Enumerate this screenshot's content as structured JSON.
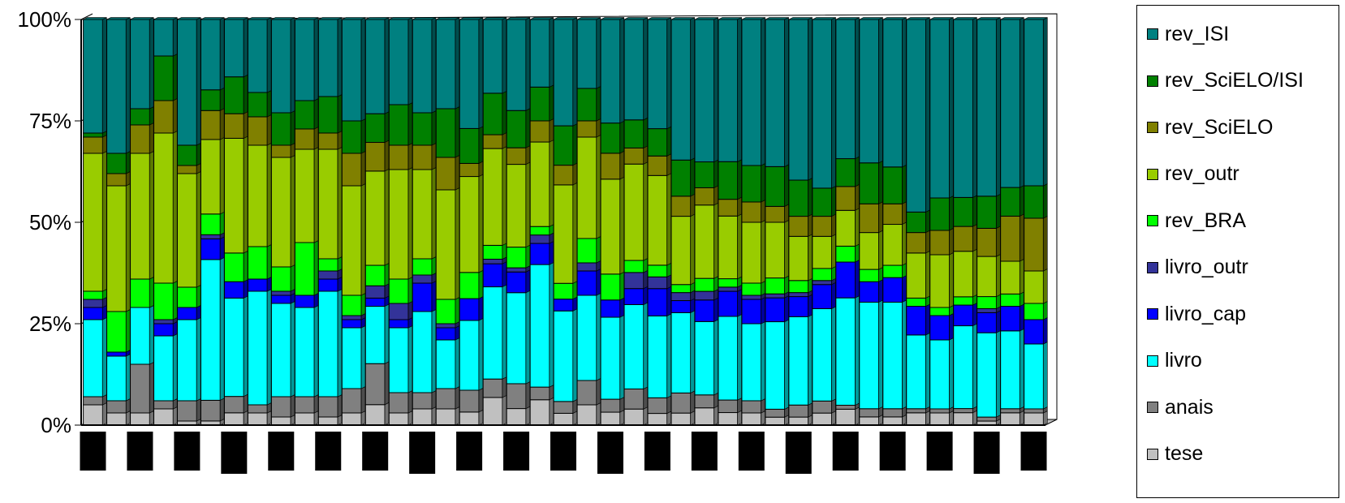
{
  "chart_data": {
    "type": "bar",
    "stacked": "percent",
    "y_ticks": [
      "0%",
      "25%",
      "50%",
      "75%",
      "100%"
    ],
    "ylim": [
      0,
      100
    ],
    "categories_count": 41,
    "series": [
      {
        "name": "tese",
        "color": "#c0c0c0",
        "values": [
          5,
          3,
          3,
          4,
          1,
          1,
          3,
          3,
          2,
          3,
          2,
          3,
          5,
          3,
          4,
          4,
          3,
          6,
          4,
          6,
          3,
          5,
          3,
          4,
          3,
          3,
          4,
          3,
          3,
          2,
          2,
          3,
          4,
          2,
          2,
          3,
          3,
          3,
          1,
          3,
          3
        ]
      },
      {
        "name": "anais",
        "color": "#808080",
        "values": [
          2,
          3,
          12,
          2,
          5,
          5,
          4,
          2,
          5,
          4,
          5,
          6,
          10,
          5,
          4,
          5,
          5,
          4,
          6,
          3,
          3,
          6,
          3,
          5,
          4,
          5,
          3,
          3,
          3,
          2,
          3,
          3,
          1,
          2,
          2,
          1,
          1,
          1,
          1,
          1,
          1
        ]
      },
      {
        "name": "livro",
        "color": "#00ffff",
        "values": [
          19,
          11,
          14,
          16,
          20,
          34,
          24,
          28,
          23,
          22,
          26,
          15,
          14,
          16,
          20,
          12,
          16,
          20,
          22,
          29,
          23,
          21,
          19,
          21,
          21,
          20,
          17,
          20,
          19,
          22,
          22,
          23,
          27,
          26,
          26,
          18,
          17,
          20,
          21,
          19,
          16
        ]
      },
      {
        "name": "livro_cap",
        "color": "#0000ff",
        "values": [
          3,
          1,
          0,
          3,
          3,
          5,
          4,
          3,
          2,
          3,
          3,
          2,
          2,
          2,
          7,
          3,
          5,
          5,
          5,
          5,
          3,
          6,
          4,
          4,
          7,
          3,
          5,
          6,
          6,
          6,
          5,
          6,
          9,
          5,
          6,
          7,
          6,
          5,
          5,
          6,
          6
        ]
      },
      {
        "name": "livro_outr",
        "color": "#333399",
        "values": [
          2,
          0,
          0,
          1,
          0,
          1,
          0,
          0,
          1,
          0,
          2,
          1,
          3,
          4,
          2,
          1,
          0,
          1,
          1,
          2,
          0,
          2,
          0,
          4,
          3,
          2,
          2,
          1,
          1,
          1,
          1,
          1,
          0,
          0,
          0,
          0,
          0,
          0,
          1,
          0,
          0
        ]
      },
      {
        "name": "rev_BRA",
        "color": "#00ff00",
        "values": [
          2,
          10,
          7,
          9,
          5,
          5,
          7,
          8,
          6,
          13,
          3,
          5,
          5,
          6,
          4,
          6,
          6,
          3,
          5,
          2,
          4,
          6,
          6,
          3,
          3,
          2,
          3,
          2,
          3,
          4,
          3,
          3,
          4,
          3,
          3,
          2,
          2,
          2,
          3,
          3,
          4
        ]
      },
      {
        "name": "rev_outr",
        "color": "#99cc00",
        "values": [
          34,
          31,
          31,
          37,
          28,
          18,
          28,
          25,
          27,
          23,
          27,
          27,
          23,
          27,
          22,
          27,
          22,
          21,
          20,
          20,
          25,
          25,
          22,
          24,
          23,
          17,
          17,
          15,
          15,
          14,
          11,
          8,
          9,
          9,
          10,
          11,
          13,
          11,
          10,
          8,
          8
        ]
      },
      {
        "name": "rev_SciELO",
        "color": "#808000",
        "values": [
          4,
          3,
          7,
          8,
          2,
          7,
          6,
          7,
          3,
          5,
          4,
          8,
          7,
          6,
          6,
          8,
          3,
          3,
          4,
          5,
          5,
          4,
          6,
          4,
          5,
          5,
          4,
          4,
          5,
          4,
          5,
          5,
          6,
          7,
          5,
          5,
          6,
          6,
          7,
          11,
          13
        ]
      },
      {
        "name": "rev_SciELO/ISI",
        "color": "#008000",
        "values": [
          1,
          5,
          4,
          11,
          5,
          5,
          9,
          6,
          8,
          7,
          9,
          8,
          7,
          10,
          8,
          12,
          8,
          9,
          9,
          8,
          10,
          8,
          7,
          7,
          7,
          9,
          6,
          9,
          9,
          10,
          9,
          7,
          7,
          10,
          9,
          5,
          8,
          7,
          8,
          7,
          8
        ]
      },
      {
        "name": "rev_ISI",
        "color": "#008080",
        "values": [
          28,
          33,
          22,
          9,
          31,
          17,
          14,
          18,
          23,
          20,
          19,
          25,
          23,
          21,
          23,
          22,
          25,
          16,
          22,
          16,
          27,
          17,
          24,
          25,
          28,
          35,
          33,
          34,
          36,
          37,
          40,
          42,
          35,
          35,
          36,
          47,
          44,
          43,
          44,
          41,
          41
        ]
      }
    ]
  }
}
